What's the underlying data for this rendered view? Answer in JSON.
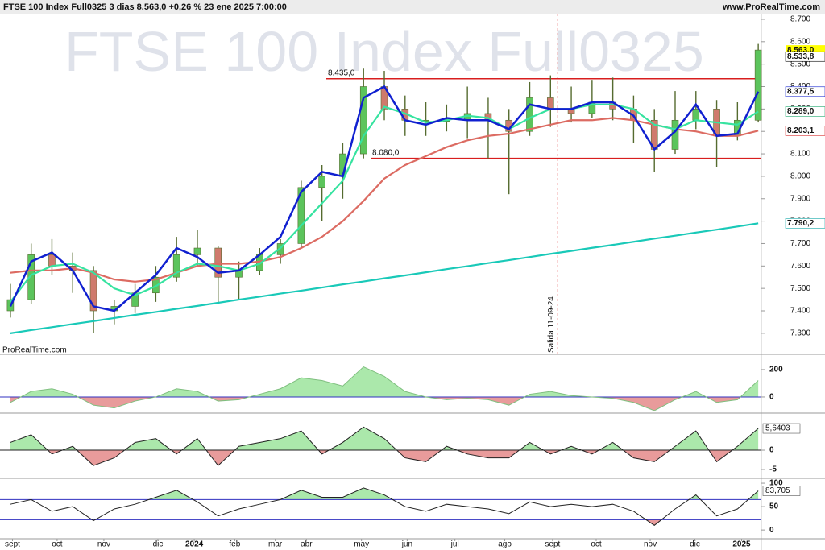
{
  "chart_data": [
    {
      "type": "candlestick",
      "title": "FTSE 100 Index Full0325 3 dias 8.563,0 +0,26 % 23 ene 2025 7:00:00",
      "source": "www.ProRealTime.com",
      "watermark": "FTSE 100 Index Full0325",
      "credit": "ProRealTime.com",
      "x": [
        1,
        3,
        5,
        7,
        9,
        11,
        13,
        15,
        17,
        19,
        21,
        23,
        25,
        27,
        29,
        31,
        33,
        35,
        37,
        39,
        41,
        43,
        45,
        47,
        49,
        51,
        53,
        55,
        57,
        59,
        61,
        63,
        65,
        67,
        69,
        71,
        73
      ],
      "open": [
        7400,
        7450,
        7650,
        7600,
        7580,
        7400,
        7420,
        7480,
        7550,
        7650,
        7680,
        7550,
        7580,
        7650,
        7700,
        7950,
        8000,
        8100,
        8400,
        8300,
        8250,
        8250,
        8250,
        8280,
        8250,
        8200,
        8350,
        8300,
        8280,
        8330,
        8300,
        8250,
        8120,
        8250,
        8300,
        8180,
        8250
      ],
      "high": [
        7520,
        7700,
        7720,
        7660,
        7600,
        7450,
        7520,
        7600,
        7730,
        7760,
        7690,
        7620,
        7680,
        7720,
        7980,
        8050,
        8150,
        8480,
        8470,
        8360,
        8330,
        8320,
        8400,
        8350,
        8300,
        8420,
        8450,
        8400,
        8430,
        8440,
        8360,
        8300,
        8380,
        8380,
        8340,
        8330,
        8590
      ],
      "low": [
        7370,
        7430,
        7560,
        7480,
        7300,
        7340,
        7390,
        7440,
        7530,
        7600,
        7430,
        7450,
        7560,
        7610,
        7680,
        7800,
        7900,
        8080,
        8250,
        8180,
        8180,
        8200,
        8170,
        8080,
        7920,
        8180,
        8220,
        8240,
        8260,
        8250,
        8150,
        8020,
        8100,
        8210,
        8040,
        8160,
        8240
      ],
      "close": [
        7450,
        7650,
        7600,
        7580,
        7400,
        7420,
        7480,
        7550,
        7650,
        7680,
        7550,
        7580,
        7650,
        7700,
        7950,
        8000,
        8100,
        8400,
        8300,
        8250,
        8250,
        8250,
        8280,
        8250,
        8200,
        8350,
        8300,
        8280,
        8330,
        8300,
        8250,
        8120,
        8250,
        8300,
        8180,
        8250,
        8563
      ],
      "lines": [
        {
          "color": "#19c9b8",
          "values": [
            7300,
            7314,
            7327,
            7341,
            7354,
            7368,
            7382,
            7395,
            7409,
            7422,
            7436,
            7450,
            7463,
            7477,
            7490,
            7504,
            7518,
            7531,
            7545,
            7558,
            7572,
            7586,
            7599,
            7613,
            7626,
            7640,
            7654,
            7667,
            7681,
            7694,
            7708,
            7722,
            7735,
            7749,
            7762,
            7776,
            7790.2
          ]
        },
        {
          "color": "#dc6b62",
          "values": [
            7570,
            7580,
            7580,
            7590,
            7570,
            7540,
            7530,
            7540,
            7570,
            7600,
            7610,
            7610,
            7620,
            7640,
            7680,
            7730,
            7800,
            7890,
            7990,
            8050,
            8090,
            8130,
            8160,
            8180,
            8190,
            8210,
            8230,
            8250,
            8250,
            8260,
            8250,
            8230,
            8210,
            8200,
            8180,
            8180,
            8203.1
          ]
        },
        {
          "color": "#36e3a0",
          "values": [
            7440,
            7560,
            7600,
            7610,
            7570,
            7500,
            7470,
            7510,
            7570,
            7610,
            7600,
            7580,
            7610,
            7680,
            7780,
            7880,
            7980,
            8180,
            8310,
            8280,
            8240,
            8250,
            8270,
            8260,
            8210,
            8260,
            8300,
            8300,
            8320,
            8320,
            8300,
            8230,
            8210,
            8250,
            8240,
            8230,
            8289
          ]
        },
        {
          "color": "#1020d0",
          "values": [
            7420,
            7620,
            7660,
            7580,
            7420,
            7400,
            7480,
            7560,
            7680,
            7640,
            7570,
            7580,
            7650,
            7730,
            7930,
            8020,
            8000,
            8350,
            8400,
            8250,
            8230,
            8260,
            8250,
            8250,
            8210,
            8320,
            8300,
            8300,
            8330,
            8330,
            8270,
            8120,
            8200,
            8320,
            8180,
            8190,
            8377.5
          ]
        }
      ],
      "hlines": [
        {
          "value": 8435,
          "label": "8.435,0",
          "color": "#d81e1e"
        },
        {
          "value": 8080,
          "label": "8.080,0",
          "color": "#d81e1e"
        }
      ],
      "vline": {
        "value": 53.7,
        "label": "Salida 11-09-24",
        "color": "#d81e1e"
      },
      "price_labels": [
        {
          "value": 8563,
          "label": "8.563,0",
          "color": "#000000",
          "background": "#ffff00"
        },
        {
          "value": 8533.8,
          "label": "8.533,8",
          "color": "#000000",
          "background": "#ffffff"
        },
        {
          "value": 8377.5,
          "label": "8.377,5",
          "color": "#1020d0",
          "background": "#ffffff"
        },
        {
          "value": 8289,
          "label": "8.289,0",
          "color": "#1ea86e",
          "background": "#ffffff"
        },
        {
          "value": 8203.1,
          "label": "8.203,1",
          "color": "#d83030",
          "background": "#ffffff"
        },
        {
          "value": 7790.2,
          "label": "7.790,2",
          "color": "#12a8a8",
          "background": "#ffffff"
        }
      ],
      "xlim": [
        0,
        73.3
      ],
      "xticks": [
        {
          "value": 1.2,
          "label": "sept"
        },
        {
          "value": 5.5,
          "label": "oct"
        },
        {
          "value": 10,
          "label": "nov"
        },
        {
          "value": 15.2,
          "label": "dic"
        },
        {
          "value": 18.7,
          "label": "2024"
        },
        {
          "value": 22.6,
          "label": "feb"
        },
        {
          "value": 26.5,
          "label": "mar"
        },
        {
          "value": 29.5,
          "label": "abr"
        },
        {
          "value": 34.8,
          "label": "may"
        },
        {
          "value": 39.2,
          "label": "jun"
        },
        {
          "value": 43.8,
          "label": "jul"
        },
        {
          "value": 48.6,
          "label": "ago"
        },
        {
          "value": 53.2,
          "label": "sept"
        },
        {
          "value": 57.4,
          "label": "oct"
        },
        {
          "value": 62.6,
          "label": "nov"
        },
        {
          "value": 66.9,
          "label": "dic"
        },
        {
          "value": 71.4,
          "label": "2025"
        }
      ],
      "ylim": [
        7260,
        8725
      ],
      "yticks": [
        {
          "value": 7300,
          "label": "7.300"
        },
        {
          "value": 7400,
          "label": "7.400"
        },
        {
          "value": 7500,
          "label": "7.500"
        },
        {
          "value": 7600,
          "label": "7.600"
        },
        {
          "value": 7700,
          "label": "7.700"
        },
        {
          "value": 7800,
          "label": "7.800"
        },
        {
          "value": 7900,
          "label": "7.900"
        },
        {
          "value": 8000,
          "label": "8.000"
        },
        {
          "value": 8100,
          "label": "8.100"
        },
        {
          "value": 8200,
          "label": "8.200"
        },
        {
          "value": 8300,
          "label": "8.300"
        },
        {
          "value": 8400,
          "label": "8.400"
        },
        {
          "value": 8500,
          "label": "8.500"
        },
        {
          "value": 8600,
          "label": "8.600"
        },
        {
          "value": 8700,
          "label": "8.700"
        }
      ],
      "up_color": "#5cc45c",
      "down_color": "#cf7a6c",
      "wick_color": "#556b2f"
    },
    {
      "type": "area",
      "x": [
        1,
        3,
        5,
        7,
        9,
        11,
        13,
        15,
        17,
        19,
        21,
        23,
        25,
        27,
        29,
        31,
        33,
        35,
        37,
        39,
        41,
        43,
        45,
        47,
        49,
        51,
        53,
        55,
        57,
        59,
        61,
        63,
        65,
        67,
        69,
        71,
        73
      ],
      "values": [
        -40,
        40,
        60,
        20,
        -60,
        -80,
        -30,
        0,
        60,
        40,
        -30,
        -20,
        20,
        60,
        140,
        120,
        80,
        220,
        150,
        40,
        0,
        -20,
        -10,
        -20,
        -60,
        20,
        40,
        10,
        0,
        -10,
        -40,
        -100,
        -20,
        40,
        -40,
        -20,
        120
      ],
      "ylim": [
        -112,
        282
      ],
      "yticks": [
        0,
        200
      ],
      "levels": [
        0
      ],
      "level_color": "#3030c0",
      "line_color": "none"
    },
    {
      "type": "area",
      "x": [
        1,
        3,
        5,
        7,
        9,
        11,
        13,
        15,
        17,
        19,
        21,
        23,
        25,
        27,
        29,
        31,
        33,
        35,
        37,
        39,
        41,
        43,
        45,
        47,
        49,
        51,
        53,
        55,
        57,
        59,
        61,
        63,
        65,
        67,
        69,
        71,
        73
      ],
      "values": [
        2,
        4,
        -1,
        1,
        -4,
        -2,
        2,
        3,
        -1,
        3,
        -4,
        1,
        2,
        3,
        5,
        -1,
        2,
        6,
        3,
        -2,
        -3,
        1,
        -1,
        -2,
        -2,
        2,
        -1,
        1,
        -1,
        2,
        -2,
        -3,
        1,
        5,
        -3,
        1,
        5.6403
      ],
      "value_labels": [
        null,
        null,
        null,
        null,
        null,
        null,
        null,
        null,
        null,
        null,
        null,
        null,
        null,
        null,
        null,
        null,
        null,
        null,
        null,
        null,
        null,
        null,
        null,
        null,
        null,
        null,
        null,
        null,
        null,
        null,
        null,
        null,
        null,
        null,
        null,
        null,
        "5,6403"
      ],
      "ylim": [
        -7.1,
        9.2
      ],
      "yticks": [
        -5,
        0
      ],
      "levels": [
        0
      ],
      "level_color": "#222222",
      "line_color": "#222222"
    },
    {
      "type": "area",
      "x": [
        1,
        3,
        5,
        7,
        9,
        11,
        13,
        15,
        17,
        19,
        21,
        23,
        25,
        27,
        29,
        31,
        33,
        35,
        37,
        39,
        41,
        43,
        45,
        47,
        49,
        51,
        53,
        55,
        57,
        59,
        61,
        63,
        65,
        67,
        69,
        71,
        73
      ],
      "values": [
        55,
        65,
        40,
        50,
        20,
        45,
        55,
        70,
        85,
        60,
        30,
        45,
        55,
        65,
        85,
        70,
        70,
        90,
        75,
        50,
        40,
        55,
        50,
        45,
        35,
        60,
        50,
        55,
        50,
        55,
        40,
        10,
        45,
        75,
        30,
        45,
        83.705
      ],
      "value_labels": [
        null,
        null,
        null,
        null,
        null,
        null,
        null,
        null,
        null,
        null,
        null,
        null,
        null,
        null,
        null,
        null,
        null,
        null,
        null,
        null,
        null,
        null,
        null,
        null,
        null,
        null,
        null,
        null,
        null,
        null,
        null,
        null,
        null,
        null,
        null,
        null,
        "83,705"
      ],
      "ylim": [
        -17,
        107
      ],
      "yticks": [
        0,
        50,
        100
      ],
      "levels": [
        65,
        22
      ],
      "level_color": "#3030c0",
      "line_color": "#222222"
    }
  ]
}
